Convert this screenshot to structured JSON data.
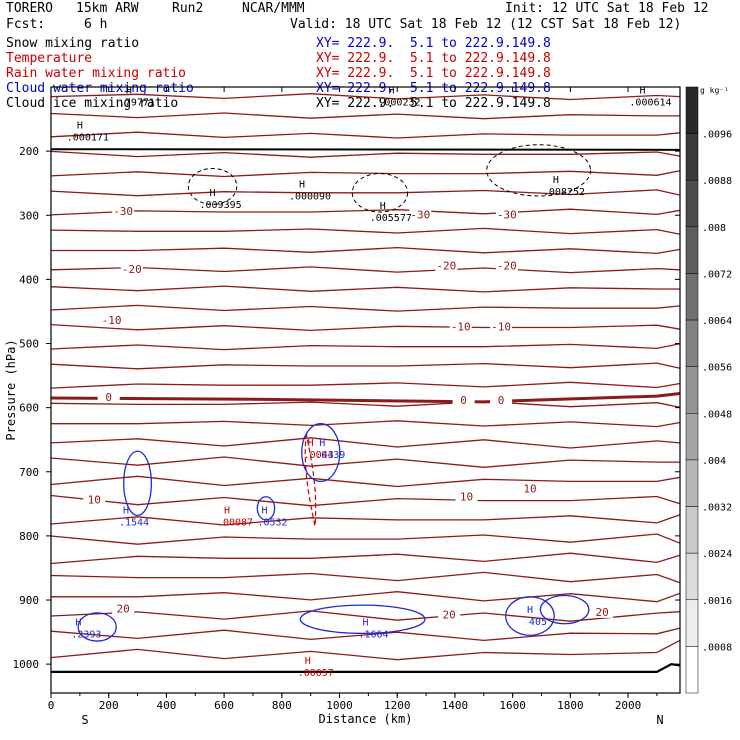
{
  "header": {
    "model": "TORERO",
    "resolution": "15km ARW",
    "run": "Run2",
    "center": "NCAR/MMM",
    "init": "Init: 12 UTC Sat 18 Feb 12",
    "fcst_label": "Fcst:",
    "fcst_value": "6 h",
    "valid": "Valid: 18 UTC Sat 18 Feb 12 (12 CST Sat 18 Feb 12)"
  },
  "legend": [
    {
      "name": "Snow mixing ratio",
      "xy": "XY= 222.9.  5.1 to 222.9.149.8",
      "color": "#000000"
    },
    {
      "name": "Temperature",
      "xy": "XY= 222.9.  5.1 to 222.9.149.8",
      "color": "#cc0000"
    },
    {
      "name": "Rain water mixing ratio",
      "xy": "XY= 222.9.  5.1 to 222.9.149.8",
      "color": "#cc0000"
    },
    {
      "name": "Cloud water mixing ratio",
      "xy": "XY= 222.9.  5.1 to 222.9.149.8",
      "color": "#0000cc"
    },
    {
      "name": "Cloud ice mixing ratio",
      "xy": "XY= 222.9.  5.1 to 222.9.149.8",
      "color": "#000000"
    }
  ],
  "chart_data": {
    "type": "contour",
    "xlabel": "Distance (km)",
    "ylabel": "Pressure (hPa)",
    "xlim": [
      0,
      2180
    ],
    "ylim": [
      1045,
      100
    ],
    "x_ticks": [
      "0",
      "200",
      "400",
      "600",
      "800",
      "1000",
      "1200",
      "1400",
      "1600",
      "1800",
      "2000"
    ],
    "y_ticks": [
      "200",
      "300",
      "400",
      "500",
      "600",
      "700",
      "800",
      "900",
      "1000"
    ],
    "left_endpoint": "S",
    "right_endpoint": "N",
    "colorbar": {
      "unit": "g kg⁻¹",
      "labels": [
        ".0096",
        ".0088",
        ".008",
        ".0072",
        ".0064",
        ".0056",
        ".0048",
        ".004",
        ".0032",
        ".0024",
        ".0016",
        ".0008"
      ]
    },
    "temperature_contours": [
      {
        "label": "-30",
        "values": [
          {
            "x": 250,
            "p": 295
          },
          {
            "x": 1280,
            "p": 300
          },
          {
            "x": 1580,
            "p": 300
          }
        ]
      },
      {
        "label": "-20",
        "values": [
          {
            "x": 280,
            "p": 385
          },
          {
            "x": 1370,
            "p": 380
          },
          {
            "x": 1580,
            "p": 380
          }
        ]
      },
      {
        "label": "-10",
        "values": [
          {
            "x": 210,
            "p": 465
          },
          {
            "x": 1420,
            "p": 475
          },
          {
            "x": 1560,
            "p": 475
          }
        ]
      },
      {
        "label": "0",
        "values": [
          {
            "x": 200,
            "p": 585
          },
          {
            "x": 1430,
            "p": 590
          },
          {
            "x": 1560,
            "p": 590
          }
        ]
      },
      {
        "label": "10",
        "values": [
          {
            "x": 150,
            "p": 745
          },
          {
            "x": 1440,
            "p": 740
          },
          {
            "x": 1660,
            "p": 728
          }
        ]
      },
      {
        "label": "20",
        "values": [
          {
            "x": 250,
            "p": 915
          },
          {
            "x": 1380,
            "p": 924
          },
          {
            "x": 1910,
            "p": 920
          }
        ]
      }
    ],
    "maxima": [
      {
        "field": "Snow mixing ratio",
        "x": 100,
        "p": 165,
        "value": ".000171"
      },
      {
        "field": "Snow mixing ratio",
        "x": 560,
        "p": 270,
        "value": ".009395"
      },
      {
        "field": "Snow mixing ratio",
        "x": 870,
        "p": 257,
        "value": ".000090"
      },
      {
        "field": "Snow mixing ratio",
        "x": 1150,
        "p": 290,
        "value": ".005577"
      },
      {
        "field": "Snow mixing ratio",
        "x": 1750,
        "p": 250,
        "value": ".008252"
      },
      {
        "field": "Snow mixing ratio",
        "x": 1180,
        "p": 110,
        "value": ".000232"
      },
      {
        "field": "Snow mixing ratio",
        "x": 2050,
        "p": 110,
        "value": ".000614"
      },
      {
        "field": "Snow mixing ratio",
        "x": 270,
        "p": 110,
        "value": ".79771"
      },
      {
        "field": "Rain water mixing ratio",
        "x": 900,
        "p": 660,
        "value": ".0043"
      },
      {
        "field": "Rain water mixing ratio",
        "x": 610,
        "p": 765,
        "value": ".00087"
      },
      {
        "field": "Rain water mixing ratio",
        "x": 890,
        "p": 1000,
        "value": ".00057"
      },
      {
        "field": "Cloud water mixing ratio",
        "x": 260,
        "p": 765,
        "value": ".1544"
      },
      {
        "field": "Cloud water mixing ratio",
        "x": 740,
        "p": 765,
        "value": ".0532"
      },
      {
        "field": "Cloud water mixing ratio",
        "x": 940,
        "p": 660,
        "value": ".0439"
      },
      {
        "field": "Cloud water mixing ratio",
        "x": 95,
        "p": 940,
        "value": ".2393"
      },
      {
        "field": "Cloud water mixing ratio",
        "x": 1090,
        "p": 940,
        "value": ".1664"
      },
      {
        "field": "Cloud water mixing ratio",
        "x": 1660,
        "p": 920,
        "value": "405"
      }
    ]
  }
}
